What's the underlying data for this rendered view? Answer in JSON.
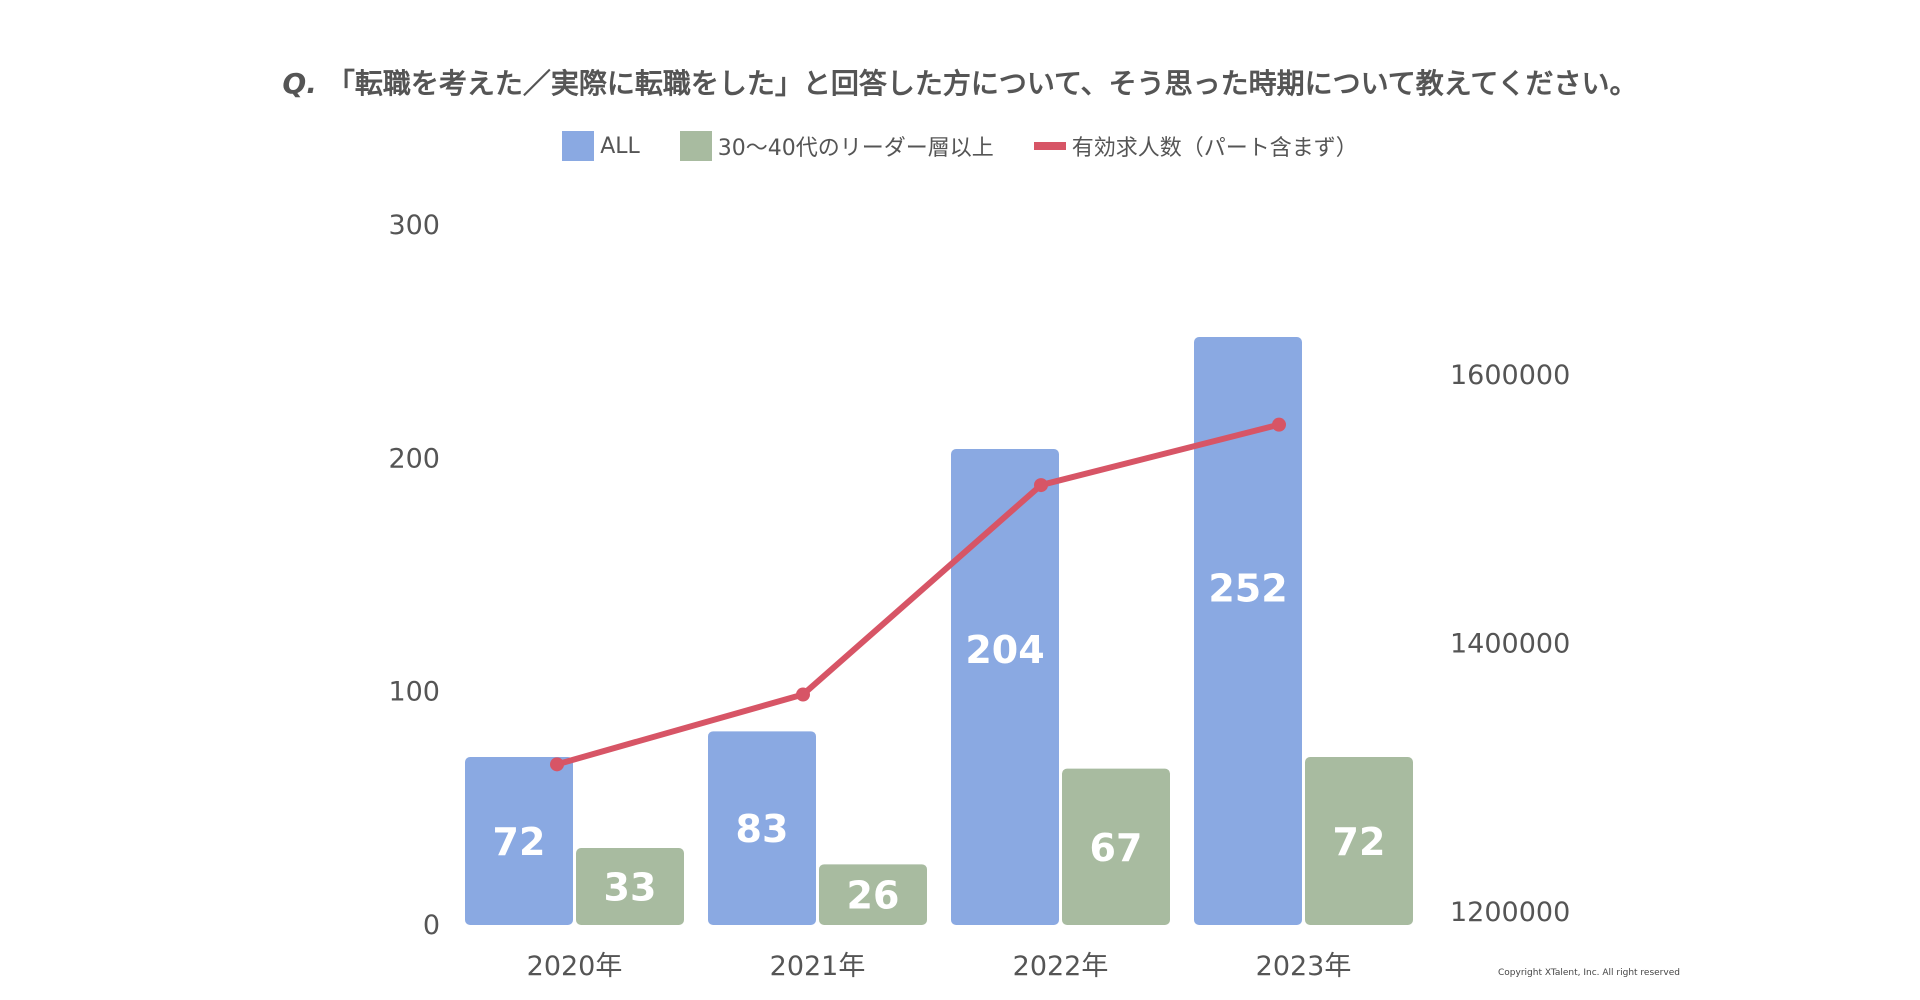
{
  "title": {
    "prefix": "Q.",
    "text": "「転職を考えた／実際に転職をした」と回答した方について、そう思った時期について教えてください。"
  },
  "legend": [
    {
      "label": "ALL",
      "color": "#8aa9e2",
      "type": "bar"
    },
    {
      "label": "30〜40代のリーダー層以上",
      "color": "#a8bba0",
      "type": "bar"
    },
    {
      "label": "有効求人数（パート含まず）",
      "color": "#d75566",
      "type": "line"
    }
  ],
  "chart_data": {
    "type": "bar",
    "categories": [
      "2020年",
      "2021年",
      "2022年",
      "2023年"
    ],
    "series": [
      {
        "name": "ALL",
        "values": [
          72,
          83,
          204,
          252
        ],
        "color": "#8aa9e2",
        "axis": "left"
      },
      {
        "name": "30〜40代のリーダー層以上",
        "values": [
          33,
          26,
          67,
          72
        ],
        "color": "#a8bba0",
        "axis": "left"
      },
      {
        "name": "有効求人数（パート含まず）",
        "type": "line",
        "values": [
          1310000,
          1362000,
          1518000,
          1563000
        ],
        "color": "#d75566",
        "axis": "right"
      }
    ],
    "y_left": {
      "min": 0,
      "max": 300,
      "ticks": [
        "0",
        "100",
        "200",
        "300"
      ]
    },
    "y_right": {
      "min": 1200000,
      "max": 1600000,
      "ticks": [
        "1200000",
        "1400000",
        "1600000"
      ]
    }
  },
  "copyright": "Copyright XTalent, Inc. All right reserved"
}
